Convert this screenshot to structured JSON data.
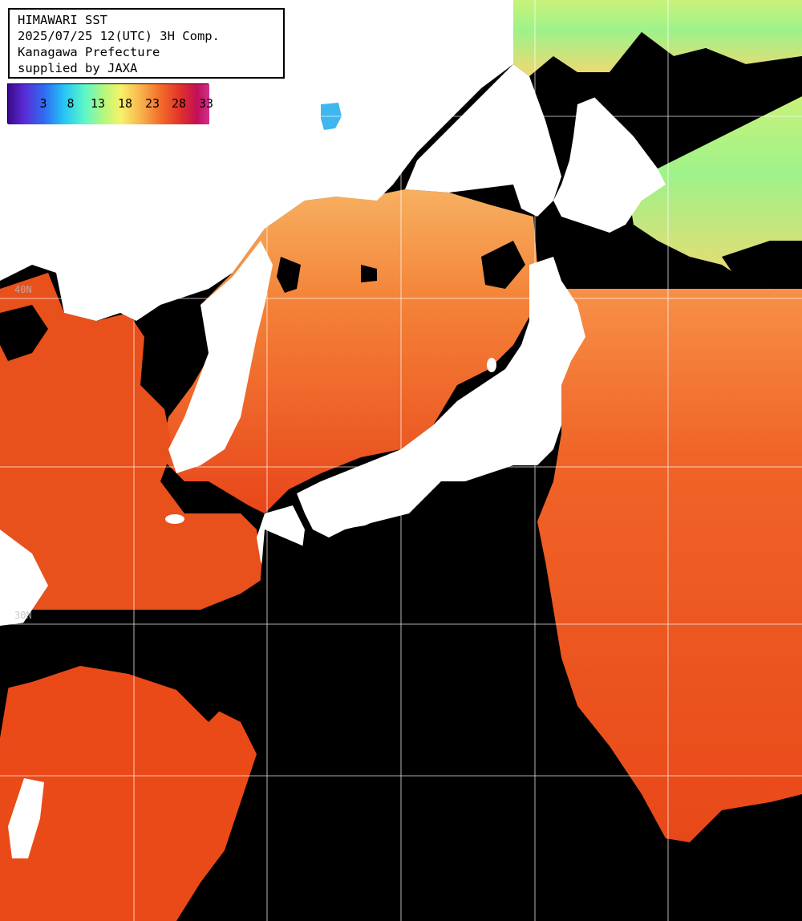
{
  "header": {
    "line1": "HIMAWARI SST",
    "line2": "2025/07/25 12(UTC) 3H Comp.",
    "line3": "Kanagawa Prefecture",
    "line4": "supplied by JAXA"
  },
  "legend": {
    "ticks": [
      "3",
      "8",
      "13",
      "18",
      "23",
      "28",
      "33"
    ],
    "gradient_colors": [
      "#3a0a8a",
      "#5a2bd6",
      "#2f6cf2",
      "#26c6f5",
      "#5cf7c8",
      "#b8f77a",
      "#f7f26a",
      "#f9b24c",
      "#f46a2a",
      "#e0302a",
      "#c2105a",
      "#d0308c"
    ]
  },
  "grid": {
    "lat_labels": [
      "40N",
      "30N"
    ]
  },
  "colors": {
    "land": "#ffffff",
    "cloud": "#000000",
    "sea_warm": "#e64a1a",
    "sea_mid": "#f78a3c",
    "sea_cool": "#f2d070",
    "sea_cold": "#9ff08a",
    "gridline": "#ffffff"
  }
}
